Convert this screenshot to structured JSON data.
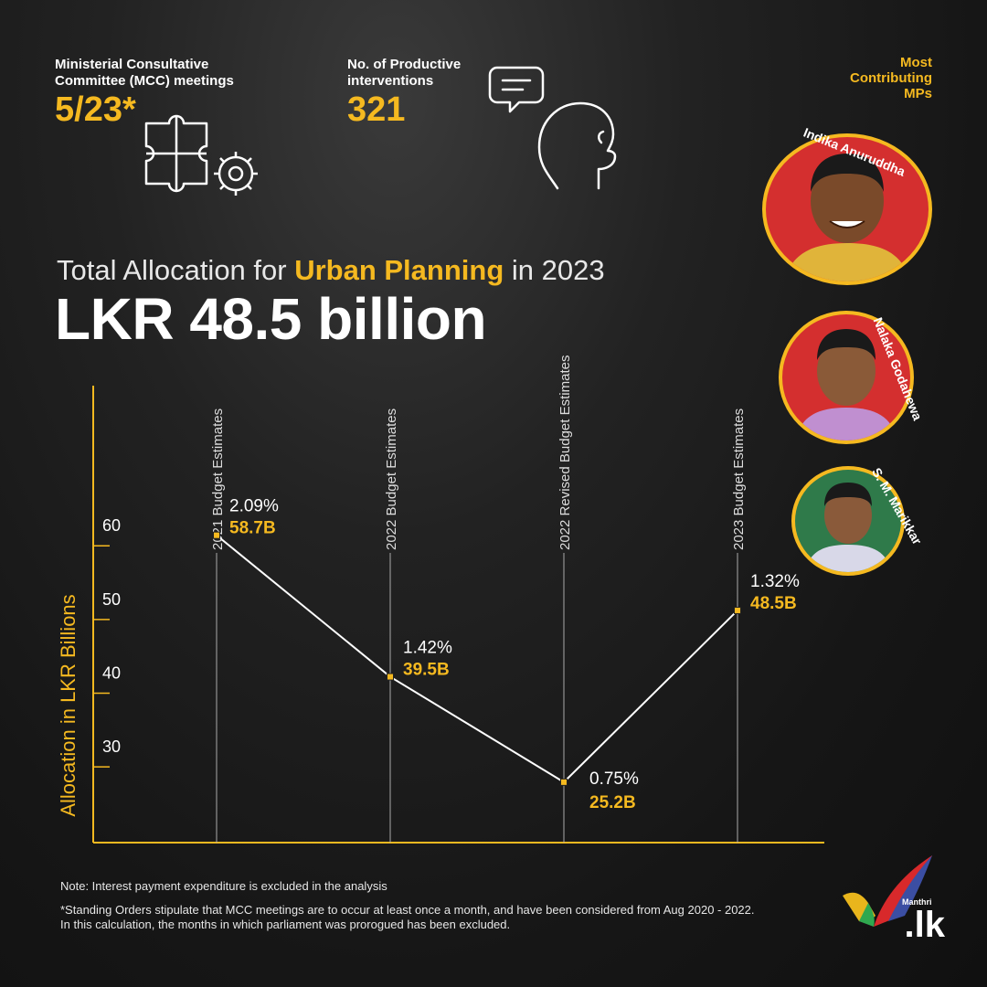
{
  "stats": {
    "mcc_label_line1": "Ministerial Consultative",
    "mcc_label_line2": "Committee (MCC) meetings",
    "mcc_value": "5/23*",
    "interventions_label_line1": "No. of Productive",
    "interventions_label_line2": "interventions",
    "interventions_value": "321"
  },
  "mps": {
    "heading_line1": "Most",
    "heading_line2": "Contributing",
    "heading_line3": "MPs",
    "names": [
      "Indika Anuruddha",
      "Nalaka Godahewa",
      "S. M. Marikkar"
    ]
  },
  "headline": {
    "prefix": "Total Allocation for ",
    "highlight": "Urban Planning",
    "suffix": " in 2023",
    "amount": "LKR 48.5 billion"
  },
  "chart_data": {
    "type": "line",
    "ylabel": "Allocation in LKR Billions",
    "yticks": [
      30,
      40,
      50,
      60
    ],
    "ylim": [
      17,
      79
    ],
    "categories": [
      "2021 Budget Estimates",
      "2022 Budget Estimates",
      "2022 Revised Budget Estimates",
      "2023 Budget Estimates"
    ],
    "values": [
      58.7,
      39.5,
      25.2,
      48.5
    ],
    "value_labels": [
      "58.7B",
      "39.5B",
      "25.2B",
      "48.5B"
    ],
    "percent_labels": [
      "2.09%",
      "1.42%",
      "0.75%",
      "1.32%"
    ],
    "colors": {
      "line": "#ffffff",
      "marker": "#f5b920",
      "value": "#f5b920",
      "axis": "#f5b920"
    }
  },
  "notes": {
    "note1": "Note: Interest payment expenditure is excluded in the analysis",
    "note2_line1": "*Standing Orders stipulate that MCC meetings are to occur at least once a month, and have been considered from Aug 2020 - 2022.",
    "note2_line2": "In this calculation, the months in which parliament was prorogued has been excluded."
  },
  "logo": {
    "small": "Manthri",
    "main": ".lk"
  }
}
